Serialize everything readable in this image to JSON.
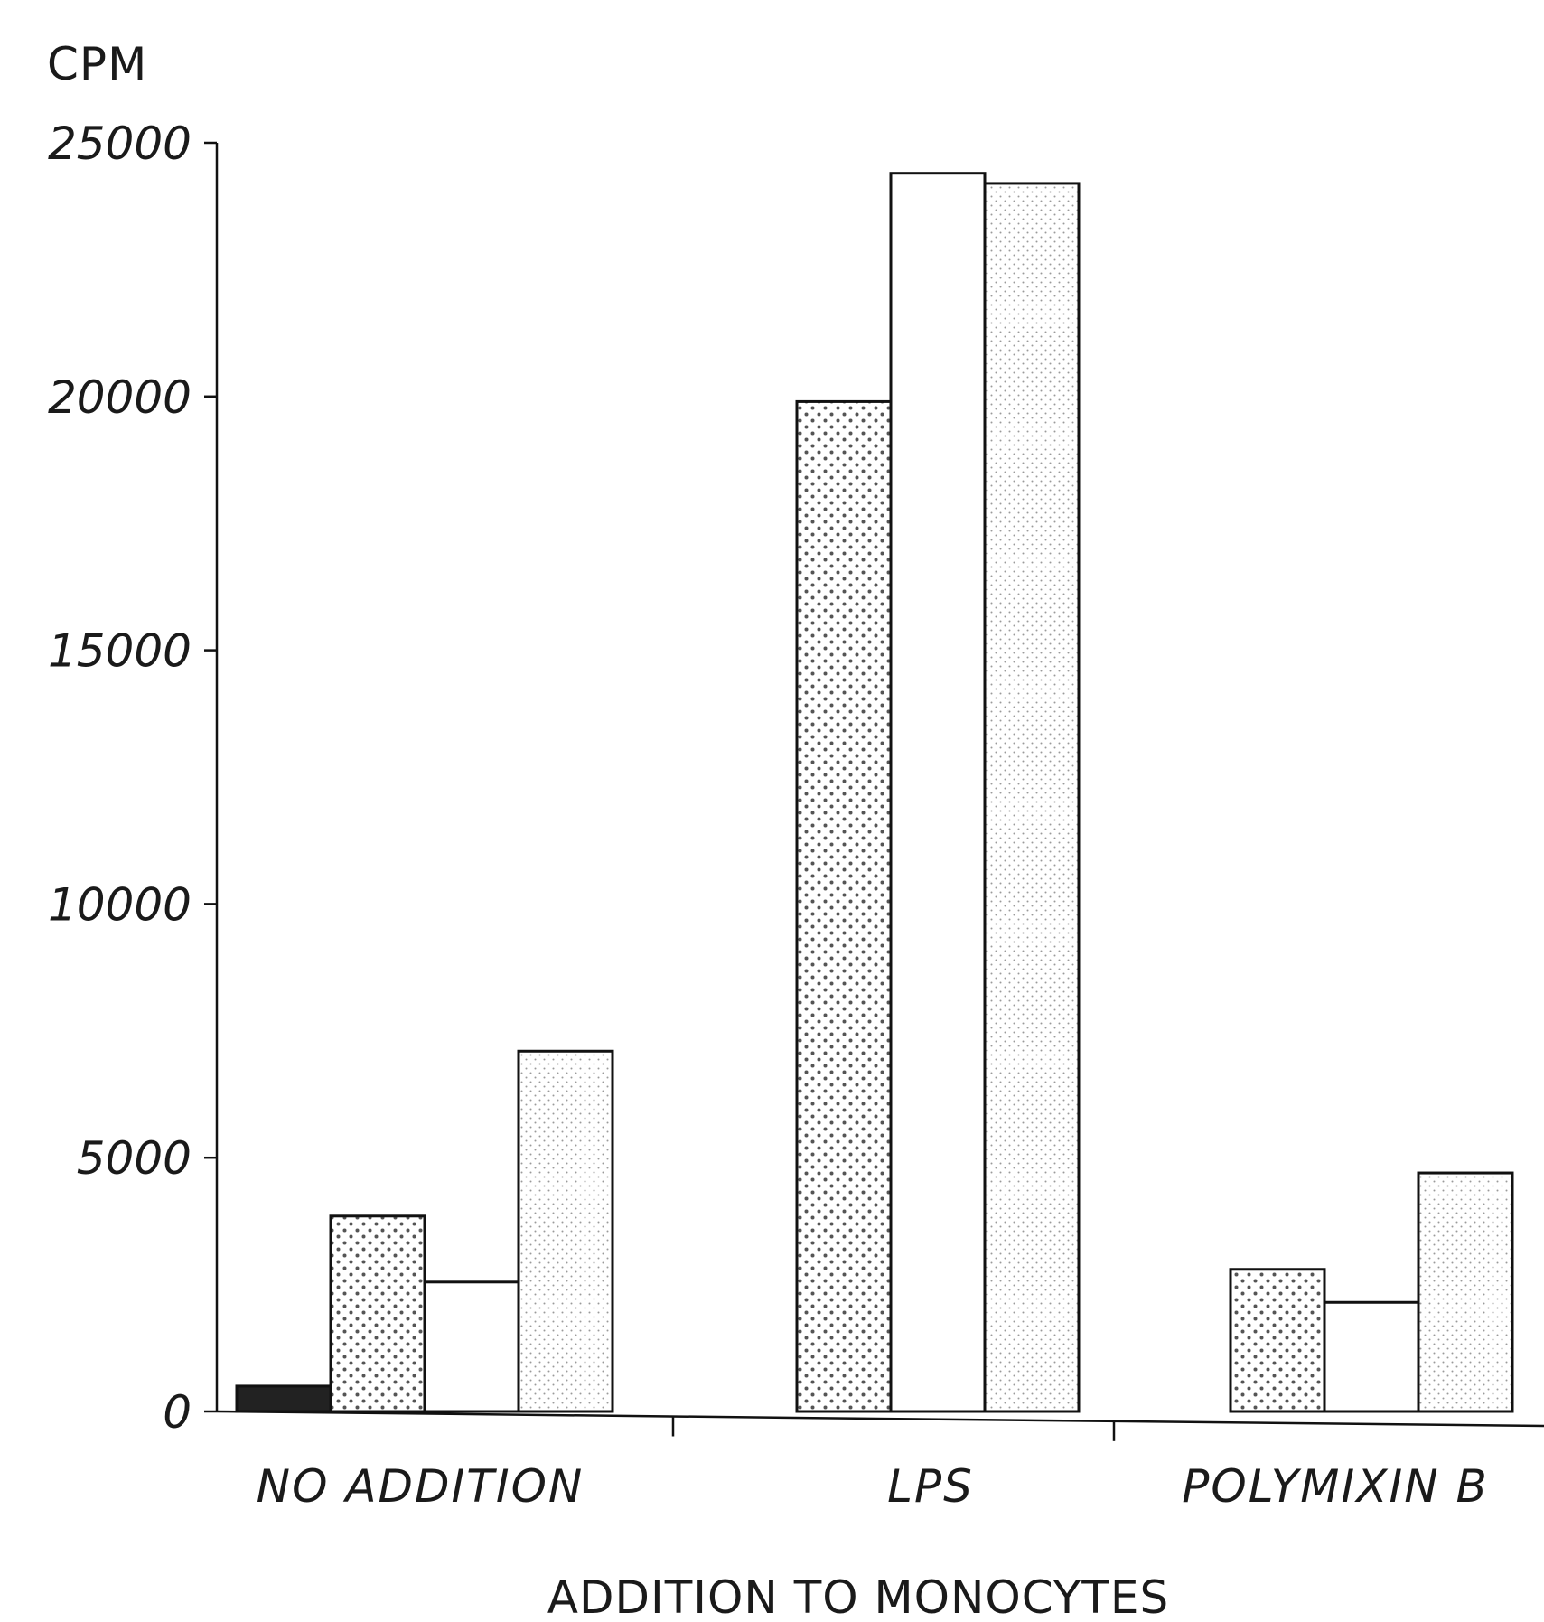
{
  "chart_data": {
    "type": "bar",
    "title": "",
    "ylabel": "CPM",
    "xlabel": "ADDITION TO MONOCYTES",
    "ylim": [
      0,
      25000
    ],
    "yticks": [
      0,
      5000,
      10000,
      15000,
      20000,
      25000
    ],
    "ytick_labels": [
      "0",
      "5000",
      "10000",
      "15000",
      "20000",
      "25000"
    ],
    "categories": [
      "NO ADDITION",
      "LPS",
      "POLYMIXIN B"
    ],
    "legend": "none",
    "grid": false,
    "series": [
      {
        "values": [
          500,
          null,
          null
        ],
        "fill": "solid",
        "color": "#222222"
      },
      {
        "values": [
          3850,
          19900,
          2800
        ],
        "fill": "dense-dots",
        "color": "#ffffff"
      },
      {
        "values": [
          2550,
          24400,
          2150
        ],
        "fill": "none",
        "color": "#ffffff"
      },
      {
        "values": [
          7100,
          24200,
          4700
        ],
        "fill": "light-dots",
        "color": "#ffffff"
      }
    ]
  }
}
